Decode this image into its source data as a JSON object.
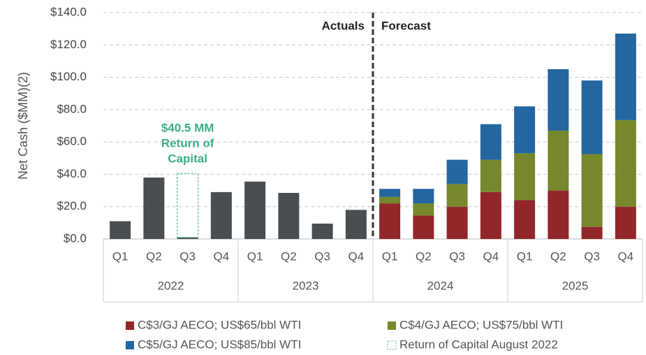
{
  "chart_data": {
    "type": "stacked-bar",
    "y_label": "Net Cash ($MM)(2)",
    "categories": [
      "Q1",
      "Q2",
      "Q3",
      "Q4",
      "Q1",
      "Q2",
      "Q3",
      "Q4",
      "Q1",
      "Q2",
      "Q3",
      "Q4",
      "Q1",
      "Q2",
      "Q3",
      "Q4"
    ],
    "groups": [
      "2022",
      "2023",
      "2024",
      "2025"
    ],
    "ylim": [
      0,
      140
    ],
    "yticks": [
      {
        "value": 0,
        "label": "$0.0"
      },
      {
        "value": 20,
        "label": "$20.0"
      },
      {
        "value": 40,
        "label": "$40.0"
      },
      {
        "value": 60,
        "label": "$60.0"
      },
      {
        "value": 80,
        "label": "$80.0"
      },
      {
        "value": 100,
        "label": "$100.0"
      },
      {
        "value": 120,
        "label": "$120.0"
      },
      {
        "value": 140,
        "label": "$140.0"
      }
    ],
    "grid": true,
    "divider_labels": [
      "Actuals",
      "Forecast"
    ],
    "annotation": {
      "lines": [
        "$40.5 MM",
        "Return of",
        "Capital"
      ],
      "color": "#3aae8c"
    },
    "series": [
      {
        "color": "#4b4e50",
        "values": [
          11,
          38,
          1,
          29,
          35.5,
          28.5,
          9.5,
          18,
          null,
          null,
          null,
          null,
          null,
          null,
          null,
          null
        ]
      },
      {
        "name": "Return of Capital August 2022",
        "color": "#5fbfa9",
        "style": "dashed",
        "values": [
          null,
          null,
          39.5,
          null,
          null,
          null,
          null,
          null,
          null,
          null,
          null,
          null,
          null,
          null,
          null,
          null
        ]
      },
      {
        "name": "C$3/GJ AECO; US$65/bbl WTI",
        "color": "#93262a",
        "values": [
          null,
          null,
          null,
          null,
          null,
          null,
          null,
          null,
          22,
          14.5,
          20,
          29,
          24,
          30,
          7.5,
          20
        ]
      },
      {
        "name": "C$4/GJ AECO; US$75/bbl WTI",
        "color": "#76882b",
        "values": [
          null,
          null,
          null,
          null,
          null,
          null,
          null,
          null,
          4,
          7.5,
          14,
          20,
          29,
          37,
          45,
          53.5
        ]
      },
      {
        "name": "C$5/GJ AECO; US$85/bbl WTI",
        "color": "#2466a0",
        "values": [
          null,
          null,
          null,
          null,
          null,
          null,
          null,
          null,
          5,
          9,
          15,
          22,
          29,
          38,
          45.5,
          53.5
        ]
      }
    ],
    "legend_order": [
      2,
      3,
      4,
      1
    ]
  }
}
